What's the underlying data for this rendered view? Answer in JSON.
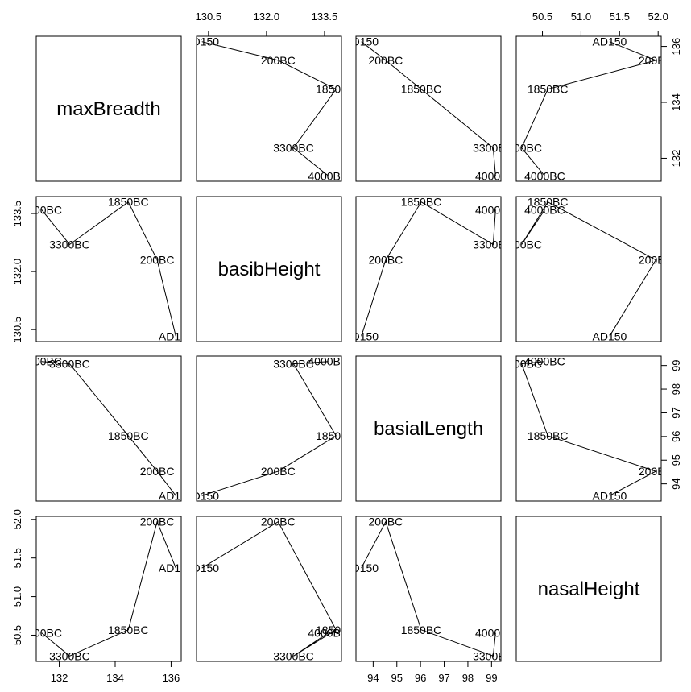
{
  "chart_data": {
    "type": "scatter",
    "subtype": "pairs",
    "variables": [
      "maxBreadth",
      "basibHeight",
      "basialLength",
      "nasalHeight"
    ],
    "epochs": [
      "4000BC",
      "3300BC",
      "1850BC",
      "200BC",
      "AD150"
    ],
    "values": {
      "maxBreadth": [
        131.37,
        132.37,
        134.47,
        135.5,
        136.17
      ],
      "basibHeight": [
        133.6,
        132.7,
        133.8,
        132.3,
        130.33
      ],
      "basialLength": [
        99.17,
        99.07,
        96.03,
        94.53,
        93.5
      ],
      "nasalHeight": [
        50.53,
        50.23,
        50.57,
        51.97,
        51.37
      ]
    },
    "ranges": {
      "maxBreadth": [
        131.37,
        136.17
      ],
      "basibHeight": [
        130.33,
        133.8
      ],
      "basialLength": [
        93.5,
        99.17
      ],
      "nasalHeight": [
        50.23,
        51.97
      ]
    },
    "ticks": {
      "maxBreadth": [
        132,
        134,
        136
      ],
      "basibHeight": [
        130.5,
        132.0,
        133.5
      ],
      "basialLength": [
        94,
        95,
        96,
        97,
        98,
        99
      ],
      "nasalHeight": [
        50.5,
        51.0,
        51.5,
        52.0
      ]
    },
    "tick_labels": {
      "maxBreadth": [
        "132",
        "134",
        "136"
      ],
      "basibHeight": [
        "130.5",
        "132.0",
        "133.5"
      ],
      "basialLength": [
        "94",
        "95",
        "96",
        "97",
        "98",
        "99"
      ],
      "nasalHeight": [
        "50.5",
        "51.0",
        "51.5",
        "52.0"
      ]
    },
    "grid": false,
    "legend": "none"
  }
}
